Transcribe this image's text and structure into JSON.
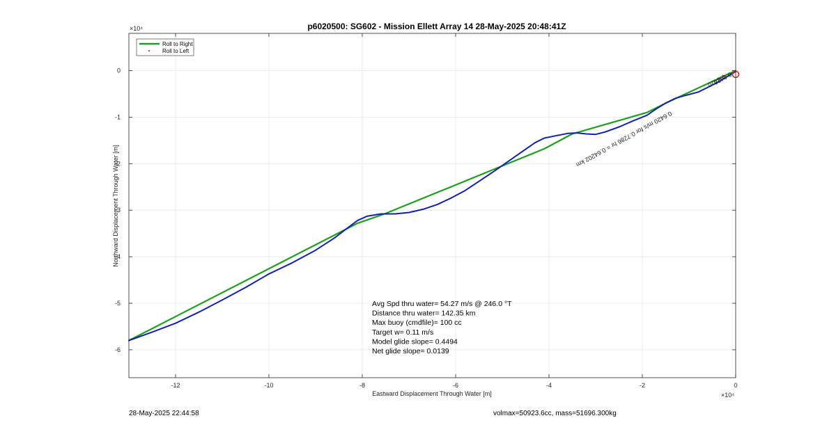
{
  "chart_data": {
    "type": "line",
    "title": "p6020500: SG602 - Mission Ellett Array 14 28-May-2025 20:48:41Z",
    "xlabel": "Eastward Displacement Through Water [m]",
    "ylabel": "Northward Displacement Through Water [m]",
    "x_multiplier": "×10⁴",
    "y_multiplier": "×10⁴",
    "xlim": [
      -13,
      0
    ],
    "ylim": [
      -6.6,
      0.8
    ],
    "xticks": [
      -12,
      -10,
      -8,
      -6,
      -4,
      -2,
      0
    ],
    "yticks": [
      0,
      -1,
      -2,
      -3,
      -4,
      -5,
      -6
    ],
    "grid": true,
    "legend_placement": "top-left",
    "legend": [
      {
        "name": "Roll to Right",
        "color": "#1aa11a",
        "style": "line"
      },
      {
        "name": "Roll to Left",
        "color": "#d62728",
        "style": "marker"
      }
    ],
    "series": [
      {
        "name": "Roll to Right",
        "color": "#1aa11a",
        "x": [
          -13,
          -8.1,
          -7.5,
          -4.1,
          -3.5,
          -1.9,
          -1.5,
          0
        ],
        "y": [
          -5.8,
          -3.28,
          -3.07,
          -1.68,
          -1.36,
          -0.9,
          -0.7,
          0
        ]
      },
      {
        "name": "",
        "color": "#1020b0",
        "x": [
          -13,
          -12.5,
          -12,
          -11.5,
          -11,
          -10.5,
          -10,
          -9.5,
          -9,
          -8.6,
          -8.3,
          -8.1,
          -7.9,
          -7.6,
          -7.3,
          -7,
          -6.7,
          -6.4,
          -6.1,
          -5.8,
          -5.5,
          -5.2,
          -4.9,
          -4.6,
          -4.3,
          -4.1,
          -3.9,
          -3.6,
          -3.4,
          -3.2,
          -3.0,
          -2.8,
          -2.5,
          -2.2,
          -1.9,
          -1.7,
          -1.5,
          -1.3,
          -1.1,
          -0.8,
          -0.6,
          -0.4,
          -0.2,
          0
        ],
        "y": [
          -5.8,
          -5.62,
          -5.43,
          -5.19,
          -4.93,
          -4.66,
          -4.37,
          -4.13,
          -3.86,
          -3.6,
          -3.37,
          -3.22,
          -3.13,
          -3.08,
          -3.08,
          -3.05,
          -2.98,
          -2.88,
          -2.74,
          -2.58,
          -2.38,
          -2.18,
          -1.97,
          -1.76,
          -1.55,
          -1.45,
          -1.41,
          -1.35,
          -1.34,
          -1.36,
          -1.37,
          -1.32,
          -1.21,
          -1.08,
          -0.96,
          -0.82,
          -0.7,
          -0.6,
          -0.54,
          -0.46,
          -0.36,
          -0.26,
          -0.14,
          -0.02
        ]
      }
    ],
    "annotations": [
      {
        "text": "0.6420 m/s for 0.7286 hr = 0.64202 km",
        "x": -1.4,
        "y": -0.87
      },
      {
        "text": "0.6420",
        "x": -0.25,
        "y": -0.08
      },
      {
        "text": "0.6420",
        "x": -0.12,
        "y": -0.03
      }
    ],
    "end_marker": {
      "x": 0,
      "y": -0.08,
      "color": "#d62728"
    },
    "stats": [
      "Avg Spd thru water= 54.27 m/s @ 246.0 °T",
      "Distance thru water= 142.35 km",
      "Max buoy (cmdfile)= 100 cc",
      "Target w= 0.11 m/s",
      "Model glide slope= 0.4494",
      "Net glide slope= 0.0139"
    ]
  },
  "footer": {
    "timestamp": "28-May-2025 22:44:58",
    "vol_mass": "volmax=50923.6cc, mass=51696.300kg"
  }
}
